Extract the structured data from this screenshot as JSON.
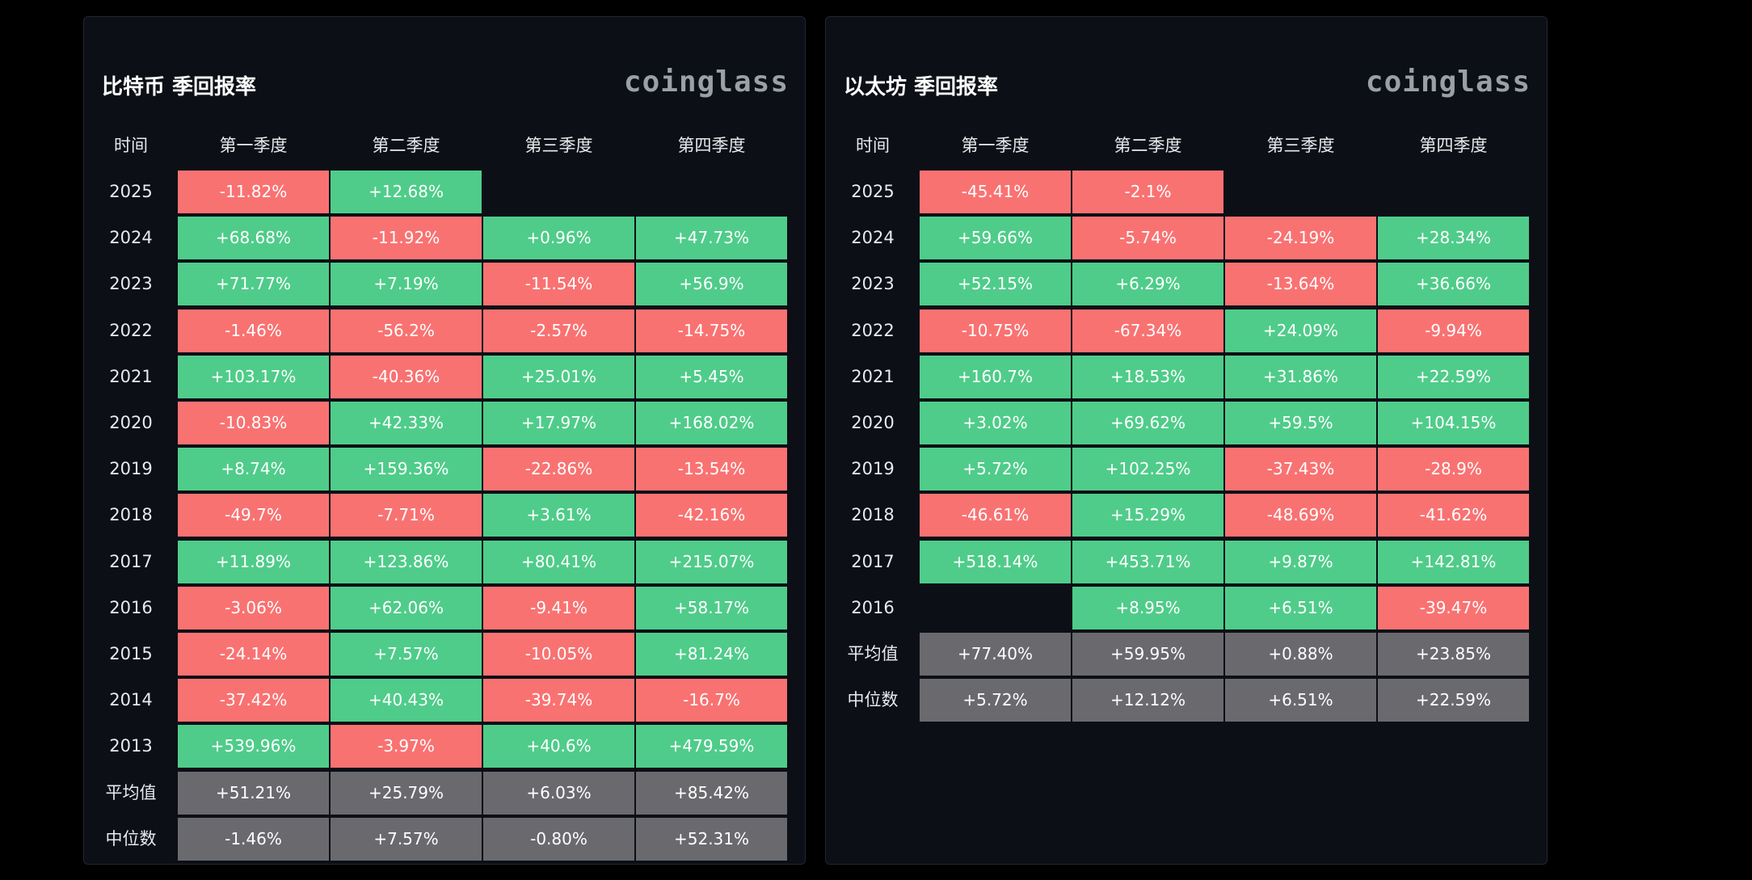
{
  "colors": {
    "positive": "#4fcc8a",
    "negative": "#f97272",
    "summary": "#6a6a6e",
    "background": "#0c0f16"
  },
  "chart_data": [
    {
      "type": "table",
      "title": "比特币 季回报率",
      "brand": "coinglass",
      "columns": [
        "时间",
        "第一季度",
        "第二季度",
        "第三季度",
        "第四季度"
      ],
      "rows": [
        {
          "label": "2025",
          "values": [
            "-11.82%",
            "+12.68%",
            "",
            ""
          ]
        },
        {
          "label": "2024",
          "values": [
            "+68.68%",
            "-11.92%",
            "+0.96%",
            "+47.73%"
          ]
        },
        {
          "label": "2023",
          "values": [
            "+71.77%",
            "+7.19%",
            "-11.54%",
            "+56.9%"
          ]
        },
        {
          "label": "2022",
          "values": [
            "-1.46%",
            "-56.2%",
            "-2.57%",
            "-14.75%"
          ]
        },
        {
          "label": "2021",
          "values": [
            "+103.17%",
            "-40.36%",
            "+25.01%",
            "+5.45%"
          ]
        },
        {
          "label": "2020",
          "values": [
            "-10.83%",
            "+42.33%",
            "+17.97%",
            "+168.02%"
          ]
        },
        {
          "label": "2019",
          "values": [
            "+8.74%",
            "+159.36%",
            "-22.86%",
            "-13.54%"
          ]
        },
        {
          "label": "2018",
          "values": [
            "-49.7%",
            "-7.71%",
            "+3.61%",
            "-42.16%"
          ]
        },
        {
          "label": "2017",
          "values": [
            "+11.89%",
            "+123.86%",
            "+80.41%",
            "+215.07%"
          ]
        },
        {
          "label": "2016",
          "values": [
            "-3.06%",
            "+62.06%",
            "-9.41%",
            "+58.17%"
          ]
        },
        {
          "label": "2015",
          "values": [
            "-24.14%",
            "+7.57%",
            "-10.05%",
            "+81.24%"
          ]
        },
        {
          "label": "2014",
          "values": [
            "-37.42%",
            "+40.43%",
            "-39.74%",
            "-16.7%"
          ]
        },
        {
          "label": "2013",
          "values": [
            "+539.96%",
            "-3.97%",
            "+40.6%",
            "+479.59%"
          ]
        },
        {
          "label": "平均值",
          "values": [
            "+51.21%",
            "+25.79%",
            "+6.03%",
            "+85.42%"
          ],
          "summary": true
        },
        {
          "label": "中位数",
          "values": [
            "-1.46%",
            "+7.57%",
            "-0.80%",
            "+52.31%"
          ],
          "summary": true
        }
      ]
    },
    {
      "type": "table",
      "title": "以太坊 季回报率",
      "brand": "coinglass",
      "columns": [
        "时间",
        "第一季度",
        "第二季度",
        "第三季度",
        "第四季度"
      ],
      "rows": [
        {
          "label": "2025",
          "values": [
            "-45.41%",
            "-2.1%",
            "",
            ""
          ]
        },
        {
          "label": "2024",
          "values": [
            "+59.66%",
            "-5.74%",
            "-24.19%",
            "+28.34%"
          ]
        },
        {
          "label": "2023",
          "values": [
            "+52.15%",
            "+6.29%",
            "-13.64%",
            "+36.66%"
          ]
        },
        {
          "label": "2022",
          "values": [
            "-10.75%",
            "-67.34%",
            "+24.09%",
            "-9.94%"
          ]
        },
        {
          "label": "2021",
          "values": [
            "+160.7%",
            "+18.53%",
            "+31.86%",
            "+22.59%"
          ]
        },
        {
          "label": "2020",
          "values": [
            "+3.02%",
            "+69.62%",
            "+59.5%",
            "+104.15%"
          ]
        },
        {
          "label": "2019",
          "values": [
            "+5.72%",
            "+102.25%",
            "-37.43%",
            "-28.9%"
          ]
        },
        {
          "label": "2018",
          "values": [
            "-46.61%",
            "+15.29%",
            "-48.69%",
            "-41.62%"
          ]
        },
        {
          "label": "2017",
          "values": [
            "+518.14%",
            "+453.71%",
            "+9.87%",
            "+142.81%"
          ]
        },
        {
          "label": "2016",
          "values": [
            "",
            "+8.95%",
            "+6.51%",
            "-39.47%"
          ]
        },
        {
          "label": "平均值",
          "values": [
            "+77.40%",
            "+59.95%",
            "+0.88%",
            "+23.85%"
          ],
          "summary": true
        },
        {
          "label": "中位数",
          "values": [
            "+5.72%",
            "+12.12%",
            "+6.51%",
            "+22.59%"
          ],
          "summary": true
        }
      ]
    }
  ]
}
